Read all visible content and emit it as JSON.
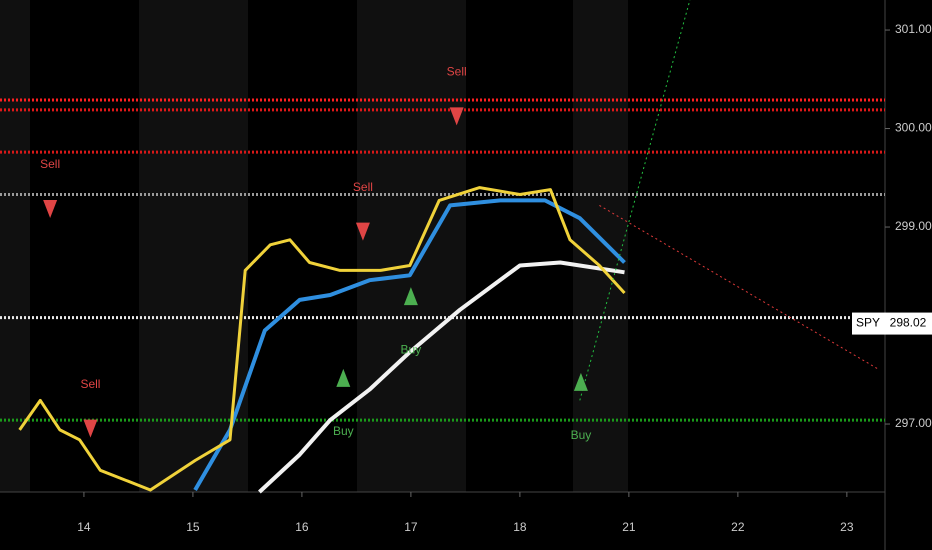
{
  "chart_data": {
    "type": "line",
    "symbol": "SPY",
    "last_price": 298.02,
    "xlim": [
      -0.77,
      7.35
    ],
    "ylim": [
      296.31,
      301.305
    ],
    "xticks": [
      {
        "value": 0,
        "label": "14"
      },
      {
        "value": 1,
        "label": "15"
      },
      {
        "value": 2,
        "label": "16"
      },
      {
        "value": 3,
        "label": "17"
      },
      {
        "value": 4,
        "label": "18"
      },
      {
        "value": 5,
        "label": "21"
      },
      {
        "value": 6,
        "label": "22"
      },
      {
        "value": 7,
        "label": "23"
      }
    ],
    "yticks": [
      {
        "value": 297,
        "label": "297.00"
      },
      {
        "value": 299,
        "label": "299.00"
      },
      {
        "value": 300,
        "label": "300.00"
      },
      {
        "value": 301,
        "label": "301.00"
      }
    ],
    "levels": [
      {
        "value": 300.29,
        "color": "#ff2020"
      },
      {
        "value": 300.19,
        "color": "#e01818"
      },
      {
        "value": 299.76,
        "color": "#d81818"
      },
      {
        "value": 299.33,
        "color": "#9a9a9a"
      },
      {
        "value": 298.08,
        "color": "#e8e8e8"
      },
      {
        "value": 297.04,
        "color": "#1a9a1a"
      }
    ],
    "series": [
      {
        "color": "#f2f2f2",
        "width": 4,
        "style": "solid",
        "x": [
          1.61,
          1.98,
          2.26,
          2.62,
          2.99,
          3.45,
          4.0,
          4.37,
          4.96
        ],
        "values": [
          296.31,
          296.69,
          297.04,
          297.35,
          297.73,
          298.16,
          298.61,
          298.64,
          298.54
        ]
      },
      {
        "color": "#2f8fe0",
        "width": 4,
        "style": "solid",
        "x": [
          1.02,
          1.34,
          1.66,
          1.98,
          2.26,
          2.62,
          2.99,
          3.36,
          3.82,
          4.23,
          4.55,
          4.96
        ],
        "values": [
          296.33,
          296.94,
          297.95,
          298.26,
          298.31,
          298.46,
          298.51,
          299.22,
          299.27,
          299.27,
          299.09,
          298.64
        ]
      },
      {
        "color": "#f0d23a",
        "width": 3,
        "style": "solid",
        "x": [
          -0.59,
          -0.4,
          -0.22,
          -0.04,
          0.15,
          0.61,
          1.02,
          1.34,
          1.48,
          1.71,
          1.89,
          2.07,
          2.35,
          2.72,
          2.99,
          3.26,
          3.63,
          4.0,
          4.28,
          4.46,
          4.73,
          4.96
        ],
        "values": [
          296.94,
          297.24,
          296.94,
          296.84,
          296.53,
          296.33,
          296.63,
          296.84,
          298.56,
          298.82,
          298.87,
          298.64,
          298.56,
          298.56,
          298.61,
          299.27,
          299.4,
          299.33,
          299.38,
          298.87,
          298.61,
          298.33
        ]
      },
      {
        "color": "#e03a3a",
        "width": 1,
        "style": "dotted",
        "x": [
          4.73,
          7.3
        ],
        "values": [
          299.22,
          297.55
        ]
      },
      {
        "color": "#22c040",
        "width": 1,
        "style": "dotted",
        "x": [
          4.55,
          5.56
        ],
        "values": [
          297.24,
          301.305
        ]
      }
    ],
    "annotations": [
      {
        "text": "Sell",
        "x": -0.31,
        "y": 299.63,
        "color": "#e04545",
        "marker": "down"
      },
      {
        "text": "Sell",
        "x": 0.06,
        "y": 297.4,
        "color": "#e04545",
        "marker": "down"
      },
      {
        "text": "Sell",
        "x": 2.56,
        "y": 299.4,
        "color": "#e04545",
        "marker": "down"
      },
      {
        "text": "Sell",
        "x": 3.42,
        "y": 300.57,
        "color": "#e04545",
        "marker": "down"
      },
      {
        "text": "Buy",
        "x": 2.38,
        "y": 296.92,
        "color": "#4caf50",
        "marker": "up"
      },
      {
        "text": "Buy",
        "x": 3.0,
        "y": 297.75,
        "color": "#4caf50",
        "marker": "up"
      },
      {
        "text": "Buy",
        "x": 4.56,
        "y": 296.88,
        "color": "#4caf50",
        "marker": "up"
      }
    ]
  }
}
